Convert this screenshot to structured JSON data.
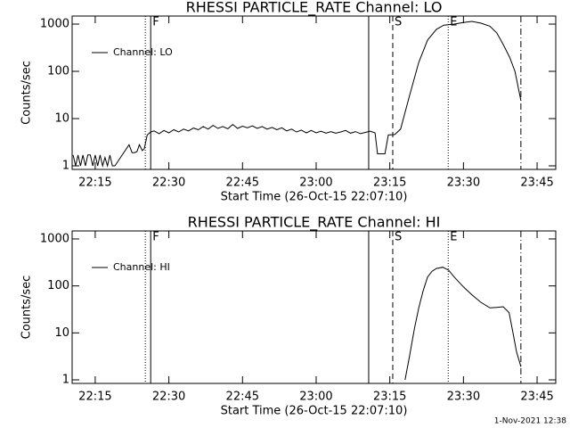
{
  "chart_data": [
    {
      "type": "line",
      "title": "RHESSI PARTICLE_RATE Channel: LO",
      "xlabel": "Start Time (26-Oct-15 22:07:10)",
      "ylabel": "Counts/sec",
      "log_y": true,
      "grid": false,
      "legend": "upper left",
      "xlim": [
        1330.3,
        1428.8
      ],
      "ylim": [
        0.84,
        1480
      ],
      "xticks": [
        {
          "value": 1335,
          "label": "22:15"
        },
        {
          "value": 1350,
          "label": "22:30"
        },
        {
          "value": 1365,
          "label": "22:45"
        },
        {
          "value": 1380,
          "label": "23:00"
        },
        {
          "value": 1395,
          "label": "23:15"
        },
        {
          "value": 1410,
          "label": "23:30"
        },
        {
          "value": 1425,
          "label": "23:45"
        }
      ],
      "yticks": [
        1,
        10,
        100,
        1000
      ],
      "markers": [
        {
          "x": 1345.2,
          "style": "dotted"
        },
        {
          "x": 1346.3,
          "style": "solid",
          "label": "F"
        },
        {
          "x": 1390.7,
          "style": "solid"
        },
        {
          "x": 1395.6,
          "style": "dashed",
          "label": "S"
        },
        {
          "x": 1406.9,
          "style": "dotted",
          "label": "E"
        },
        {
          "x": 1421.7,
          "style": "dashdot"
        }
      ],
      "x": [
        1330.5,
        1331,
        1331.5,
        1332,
        1332.5,
        1333,
        1333.5,
        1334,
        1334.5,
        1335,
        1335.5,
        1336,
        1336.5,
        1337,
        1337.5,
        1338,
        1338.5,
        1339,
        1341.9,
        1342.5,
        1343,
        1343.5,
        1344,
        1344.6,
        1345,
        1345.6,
        1346.3,
        1347,
        1348,
        1349,
        1350,
        1351,
        1352,
        1353,
        1354,
        1355,
        1356,
        1357,
        1358,
        1359,
        1360,
        1361,
        1362,
        1363,
        1364,
        1365,
        1366,
        1367,
        1368,
        1369,
        1370,
        1371,
        1372,
        1373,
        1374,
        1375,
        1376,
        1377,
        1378,
        1379,
        1380,
        1381,
        1382,
        1383,
        1384,
        1385,
        1386,
        1387,
        1388,
        1389,
        1390,
        1391,
        1392,
        1392.5,
        1394,
        1394.7,
        1396,
        1397.2,
        1399,
        1400.9,
        1402.7,
        1404.5,
        1406,
        1408.1,
        1410,
        1411.7,
        1413.5,
        1415.4,
        1416.8,
        1418.1,
        1419.4,
        1420.5,
        1421.7
      ],
      "series": [
        {
          "name": "Channel: LO",
          "color": "#000000",
          "values": [
            1.7,
            1,
            1.7,
            1,
            1.7,
            1,
            1.7,
            1.7,
            1,
            1.7,
            1,
            1.7,
            1,
            1.5,
            1,
            1.7,
            1,
            1,
            2.8,
            1.9,
            1.9,
            2,
            2.8,
            2.1,
            2.3,
            4.5,
            5.2,
            5.5,
            4.8,
            5.6,
            5,
            5.8,
            5.2,
            6,
            5.5,
            6.3,
            5.8,
            6.8,
            6,
            7.2,
            6.2,
            6.8,
            6.1,
            7.5,
            6.2,
            6.9,
            6.4,
            7,
            6.2,
            6.8,
            6,
            6.5,
            5.8,
            6.4,
            5.5,
            6,
            5.2,
            5.7,
            5,
            5.6,
            5,
            5.4,
            4.9,
            5.3,
            4.9,
            5.2,
            5.6,
            4.9,
            5.3,
            4.8,
            5.1,
            5.4,
            5,
            1.8,
            1.8,
            4.5,
            4.6,
            6,
            30,
            155,
            460,
            775,
            950,
            1000,
            1080,
            1140,
            1050,
            900,
            650,
            370,
            200,
            100,
            24
          ]
        }
      ]
    },
    {
      "type": "line",
      "title": "RHESSI PARTICLE_RATE Channel: HI",
      "xlabel": "Start Time (26-Oct-15 22:07:10)",
      "ylabel": "Counts/sec",
      "log_y": true,
      "grid": false,
      "legend": "upper left",
      "xlim": [
        1330.3,
        1428.8
      ],
      "ylim": [
        0.84,
        1480
      ],
      "xticks": [
        {
          "value": 1335,
          "label": "22:15"
        },
        {
          "value": 1350,
          "label": "22:30"
        },
        {
          "value": 1365,
          "label": "22:45"
        },
        {
          "value": 1380,
          "label": "23:00"
        },
        {
          "value": 1395,
          "label": "23:15"
        },
        {
          "value": 1410,
          "label": "23:30"
        },
        {
          "value": 1425,
          "label": "23:45"
        }
      ],
      "yticks": [
        1,
        10,
        100,
        1000
      ],
      "markers": [
        {
          "x": 1345.2,
          "style": "dotted"
        },
        {
          "x": 1346.3,
          "style": "solid",
          "label": "F"
        },
        {
          "x": 1390.7,
          "style": "solid"
        },
        {
          "x": 1395.6,
          "style": "dashed",
          "label": "S"
        },
        {
          "x": 1406.9,
          "style": "dotted",
          "label": "E"
        },
        {
          "x": 1421.7,
          "style": "dashdot"
        }
      ],
      "x": [
        1398.1,
        1399,
        1400,
        1400.9,
        1401.8,
        1402.7,
        1403.6,
        1404.5,
        1405.8,
        1407,
        1408.1,
        1410,
        1411.7,
        1413.5,
        1415.4,
        1416.8,
        1418.1,
        1419.3,
        1420.1,
        1420.8,
        1421.7
      ],
      "series": [
        {
          "name": "Channel: HI",
          "color": "#000000",
          "values": [
            1,
            3.1,
            12,
            34,
            80,
            155,
            205,
            235,
            250,
            215,
            155,
            95,
            65,
            45,
            34,
            35,
            36,
            27,
            10,
            4,
            1.9
          ]
        }
      ]
    }
  ],
  "footer": "1-Nov-2021 12:38"
}
